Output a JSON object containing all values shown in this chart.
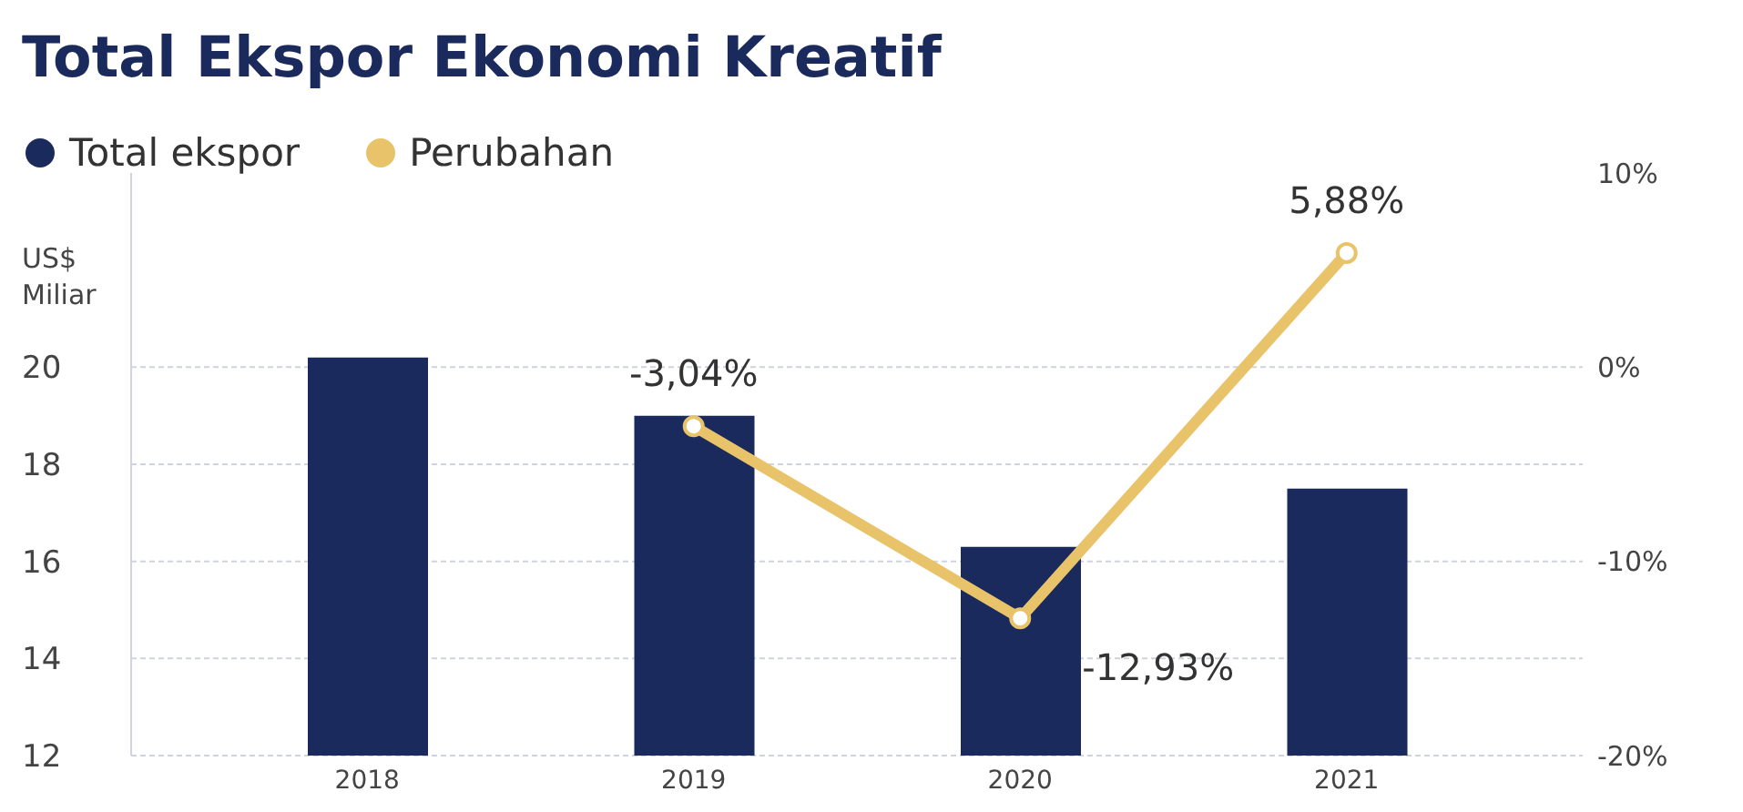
{
  "chart_data": {
    "type": "bar",
    "title": "Total Ekspor Ekonomi Kreatif",
    "ylabel": "US$ Miliar",
    "categories": [
      "2018",
      "2019",
      "2020",
      "2021"
    ],
    "series": [
      {
        "name": "Total ekspor",
        "color": "#1b2a5c",
        "values": [
          20.2,
          19.0,
          16.3,
          17.5
        ]
      },
      {
        "name": "Perubahan",
        "type": "line",
        "axis": "y2",
        "color": "#e8c36a",
        "values": [
          null,
          -3.04,
          -12.93,
          5.88
        ],
        "value_labels": [
          null,
          "-3,04%",
          "-12,93%",
          "5,88%"
        ]
      }
    ],
    "ylim": [
      12,
      24
    ],
    "yticks": [
      12,
      14,
      16,
      18,
      20
    ],
    "y2lim": [
      -20,
      10
    ],
    "y2ticks": [
      {
        "value": -20,
        "label": "-20%"
      },
      {
        "value": -10,
        "label": "-10%"
      },
      {
        "value": 0,
        "label": "0%"
      },
      {
        "value": 10,
        "label": "10%"
      }
    ],
    "grid": "y",
    "legend": "top left",
    "marker": "circle"
  }
}
